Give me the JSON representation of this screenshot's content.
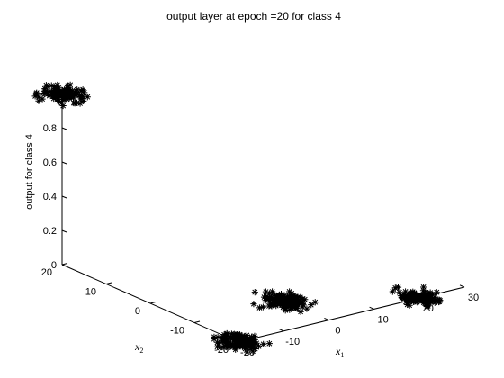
{
  "chart_data": {
    "type": "scatter",
    "dimensions": 3,
    "title": "output layer at epoch =20 for class 4",
    "xlabel": "x",
    "xlabel_sub": "1",
    "ylabel": "x",
    "ylabel_sub": "2",
    "zlabel": "output for class 4",
    "xlim": [
      -20,
      30
    ],
    "ylim": [
      -20,
      20
    ],
    "zlim": [
      0,
      1
    ],
    "x_ticks": [
      -20,
      -10,
      0,
      10,
      20,
      30
    ],
    "y_ticks": [
      -20,
      -10,
      0,
      10,
      20
    ],
    "z_ticks": [
      0,
      0.2,
      0.4,
      0.6,
      0.8,
      1
    ],
    "x_tick_labels": [
      "-20",
      "-10",
      "0",
      "10",
      "20",
      "30"
    ],
    "y_tick_labels": [
      "-20",
      "-10",
      "0",
      "10",
      "20"
    ],
    "z_tick_labels": [
      "0",
      "0.2",
      "0.4",
      "0.6",
      "0.8",
      "1"
    ],
    "marker": "*",
    "marker_color": "#000000",
    "grid": false,
    "clusters": [
      {
        "center": {
          "x": -20,
          "y": 20,
          "z": 1.0
        },
        "spread": {
          "x": 3,
          "y": 3,
          "z": 0.02
        }
      },
      {
        "center": {
          "x": -20,
          "y": -20,
          "z": 0.0
        },
        "spread": {
          "x": 3,
          "y": 3,
          "z": 0.02
        }
      },
      {
        "center": {
          "x": 0,
          "y": -10,
          "z": 0.0
        },
        "spread": {
          "x": 3,
          "y": 3,
          "z": 0.02
        }
      },
      {
        "center": {
          "x": 20,
          "y": -20,
          "z": 0.0
        },
        "spread": {
          "x": 3,
          "y": 3,
          "z": 0.02
        }
      }
    ],
    "points_per_cluster": 140
  }
}
